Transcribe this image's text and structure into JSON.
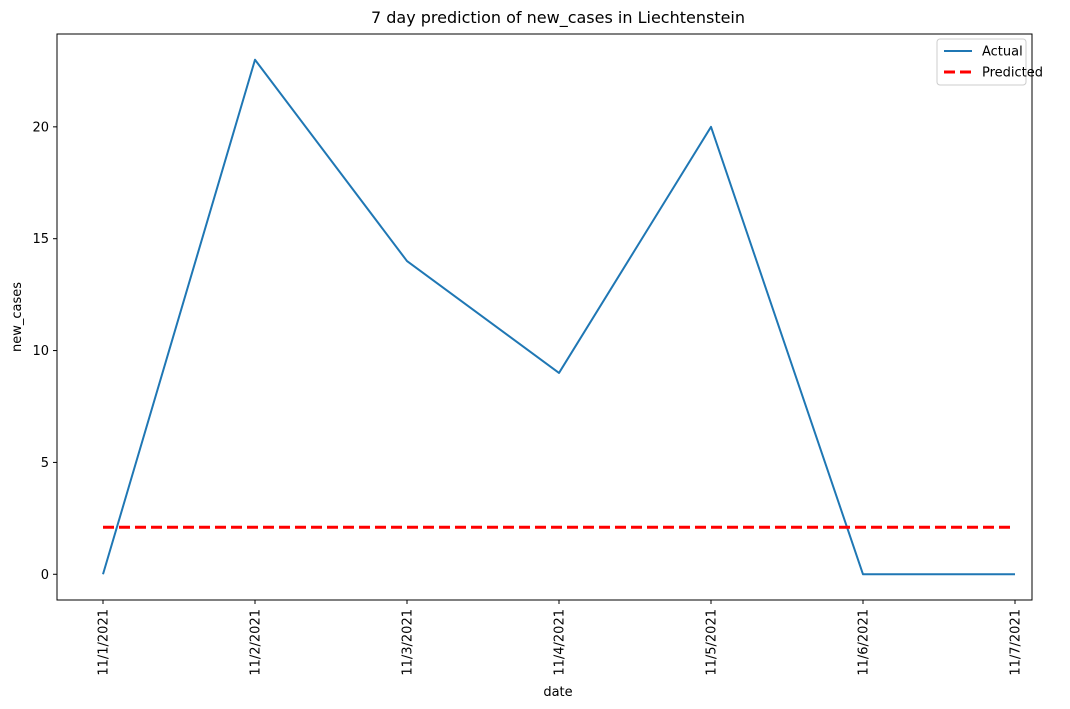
{
  "chart_data": {
    "type": "line",
    "title": "7 day prediction of new_cases in Liechtenstein",
    "xlabel": "date",
    "ylabel": "new_cases",
    "categories": [
      "11/1/2021",
      "11/2/2021",
      "11/3/2021",
      "11/4/2021",
      "11/5/2021",
      "11/6/2021",
      "11/7/2021"
    ],
    "series": [
      {
        "name": "Actual",
        "values": [
          0,
          23,
          14,
          9,
          20,
          0,
          0
        ],
        "color": "#1f77b4",
        "style": "solid"
      },
      {
        "name": "Predicted",
        "values": [
          2.1,
          2.1,
          2.1,
          2.1,
          2.1,
          2.1,
          2.1
        ],
        "color": "#ff0000",
        "style": "dashed"
      }
    ],
    "yticks": [
      0,
      5,
      10,
      15,
      20
    ],
    "ylim": [
      -1.15,
      24.15
    ],
    "grid": false,
    "legend_position": "top-right"
  }
}
